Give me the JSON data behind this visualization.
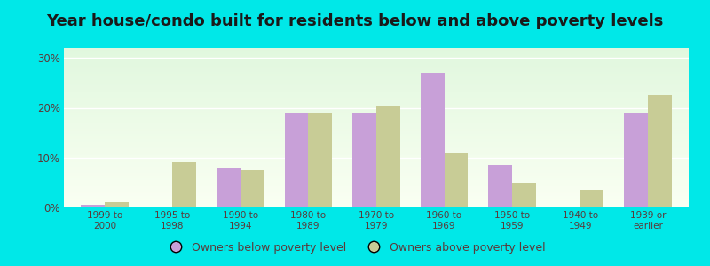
{
  "title": "Year house/condo built for residents below and above poverty levels",
  "categories": [
    "1999 to\n2000",
    "1995 to\n1998",
    "1990 to\n1994",
    "1980 to\n1989",
    "1970 to\n1979",
    "1960 to\n1969",
    "1950 to\n1959",
    "1940 to\n1949",
    "1939 or\nearlier"
  ],
  "below_poverty": [
    0.5,
    0.0,
    8.0,
    19.0,
    19.0,
    27.0,
    8.5,
    0.0,
    19.0
  ],
  "above_poverty": [
    1.0,
    9.0,
    7.5,
    19.0,
    20.5,
    11.0,
    5.0,
    3.5,
    22.5
  ],
  "below_color": "#c8a0d8",
  "above_color": "#c8cc96",
  "ylim": [
    0,
    32
  ],
  "yticks": [
    0,
    10,
    20,
    30
  ],
  "ytick_labels": [
    "0%",
    "10%",
    "20%",
    "30%"
  ],
  "outer_bg": "#00e8e8",
  "bar_width": 0.35,
  "title_fontsize": 13,
  "legend_label_below": "Owners below poverty level",
  "legend_label_above": "Owners above poverty level",
  "label_color": "#5a3a3a"
}
